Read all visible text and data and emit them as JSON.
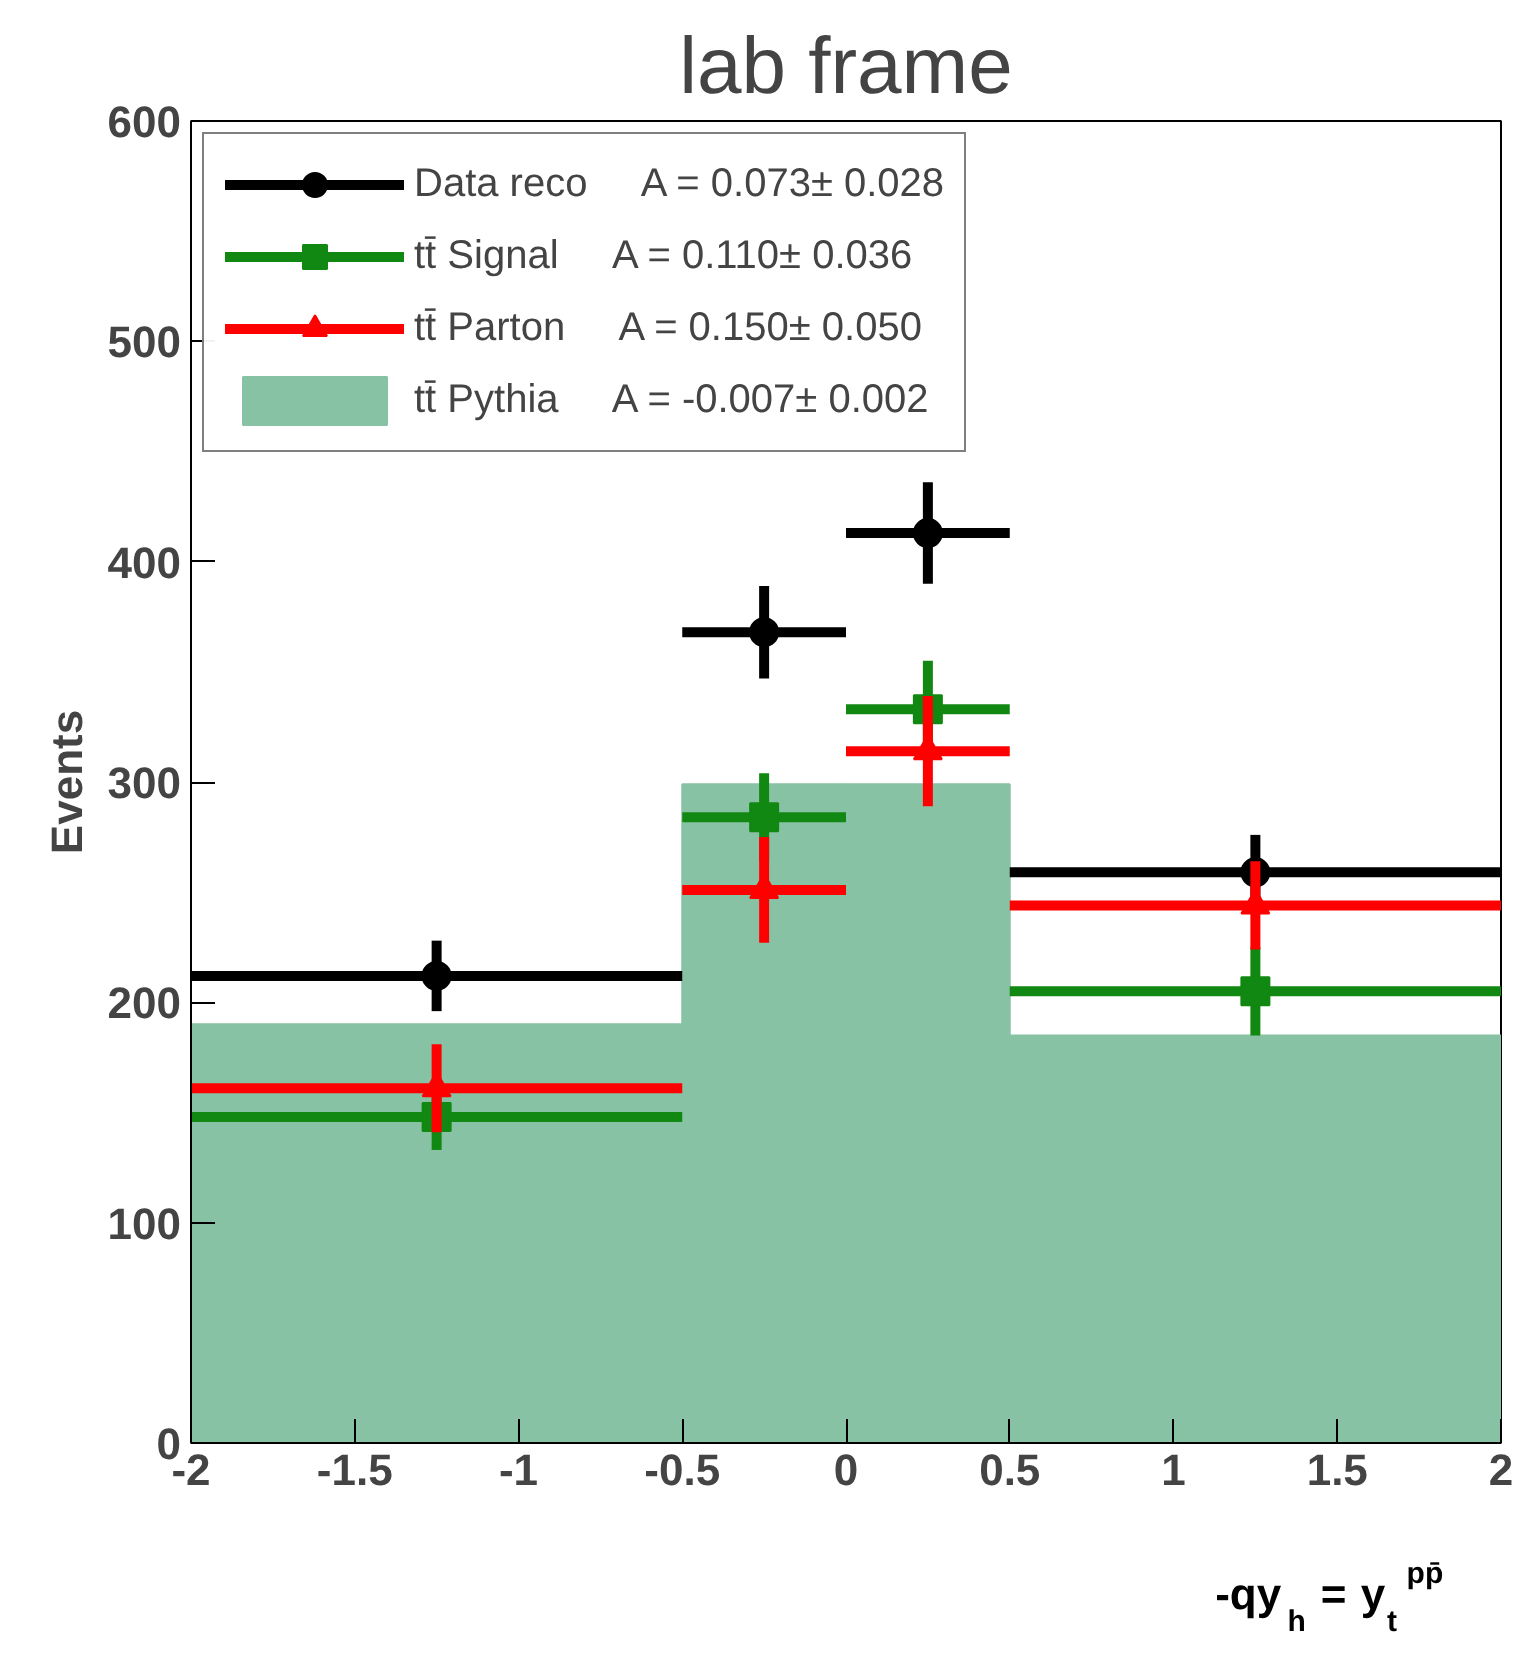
{
  "chart_data": {
    "type": "scatter",
    "title": "lab frame",
    "ylabel": "Events",
    "xlabel": "-qy$_{h}$ = y$_{t}$$^{pp̄}$",
    "x": [
      -1.25,
      -0.25,
      0.25,
      1.25
    ],
    "series": [
      {
        "name": "Data reco     A = 0.073± 0.028",
        "color": "#000000",
        "marker": "circle",
        "values": [
          212,
          368,
          413,
          259
        ],
        "errors": [
          16,
          21,
          23,
          17
        ],
        "xerrors": [
          0.75,
          0.25,
          0.25,
          0.75
        ]
      },
      {
        "name": "tt̄ Signal     A = 0.110± 0.036",
        "color": "#118811",
        "marker": "square",
        "values": [
          148,
          284,
          333,
          205
        ],
        "errors": [
          15,
          20,
          22,
          20
        ],
        "xerrors": [
          0.75,
          0.25,
          0.25,
          0.75
        ]
      },
      {
        "name": "tt̄ Parton     A = 0.150± 0.050",
        "color": "#ff0000",
        "marker": "triangle",
        "values": [
          161,
          251,
          314,
          244
        ],
        "errors": [
          20,
          24,
          25,
          20
        ],
        "xerrors": [
          0.75,
          0.25,
          0.25,
          0.75
        ]
      },
      {
        "name": "tt̄ Pythia     A = -0.007± 0.002",
        "type": "histogram",
        "color": "#88c2a4",
        "bins": [
          -2,
          -0.5,
          0,
          0.5,
          2
        ],
        "values": [
          190,
          299,
          299,
          185
        ]
      }
    ],
    "xlim": [
      -2,
      2
    ],
    "ylim": [
      0,
      600
    ],
    "xticks": [
      -2,
      -1.5,
      -1,
      -0.5,
      0,
      0.5,
      1,
      1.5,
      2
    ],
    "yticks": [
      0,
      100,
      200,
      300,
      400,
      500,
      600
    ],
    "grid": false,
    "legend": "top left"
  }
}
